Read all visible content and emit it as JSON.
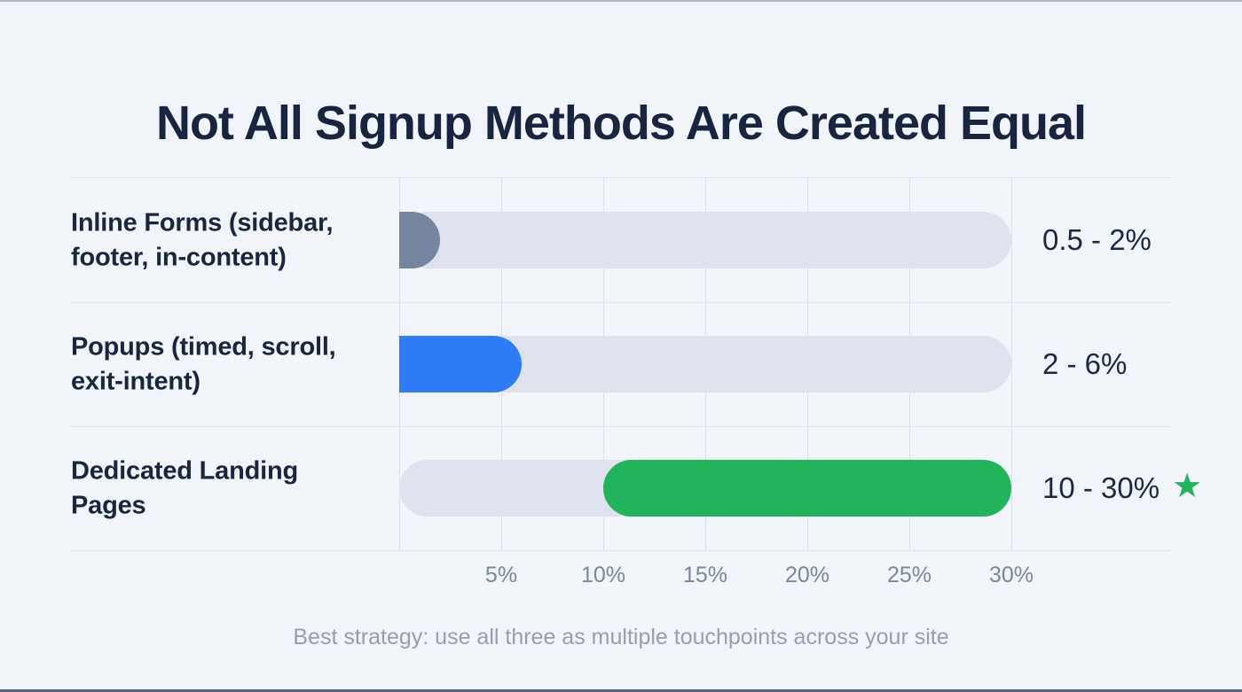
{
  "page": {
    "title": "Not All Signup Methods Are Created Equal",
    "footnote": "Best strategy: use all three as multiple touchpoints across your site"
  },
  "icons": {
    "star": "★"
  },
  "colors": {
    "background": "#F1F4F8",
    "track": "#DFE3EE",
    "grid_line": "#DBE0EB",
    "title_text": "#192440",
    "tick_text": "#7C8799",
    "footnote_text": "#97A0B0",
    "slate_bar": "#76849E",
    "blue_bar": "#2F7DF6",
    "green_bar": "#21B45B",
    "star": "#21B45B"
  },
  "chart_data": {
    "type": "bar",
    "orientation": "horizontal",
    "title": "Not All Signup Methods Are Created Equal",
    "xlabel": "",
    "ylabel": "",
    "xlim": [
      0,
      30
    ],
    "grid": true,
    "legend": null,
    "x_ticks": [
      {
        "label": "5%",
        "value": 5
      },
      {
        "label": "10%",
        "value": 10
      },
      {
        "label": "15%",
        "value": 15
      },
      {
        "label": "20%",
        "value": 20
      },
      {
        "label": "25%",
        "value": 25
      },
      {
        "label": "30%",
        "value": 30
      }
    ],
    "rows": [
      {
        "label": "Inline Forms (sidebar, footer, in-content)",
        "label_lines": [
          "Inline Forms (sidebar,",
          "footer, in-content)"
        ],
        "range_label": "0.5 - 2%",
        "range_min_pct": 0.5,
        "range_max_pct": 2,
        "bar_start_pct": 0,
        "bar_end_pct": 2,
        "color": "#76849E",
        "starred": false
      },
      {
        "label": "Popups (timed, scroll, exit-intent)",
        "label_lines": [
          "Popups (timed, scroll,",
          "exit-intent)"
        ],
        "range_label": "2 - 6%",
        "range_min_pct": 2,
        "range_max_pct": 6,
        "bar_start_pct": 0,
        "bar_end_pct": 6,
        "color": "#2F7DF6",
        "starred": false
      },
      {
        "label": "Dedicated Landing Pages",
        "label_lines": [
          "Dedicated Landing",
          "Pages"
        ],
        "range_label": "10 - 30%",
        "range_min_pct": 10,
        "range_max_pct": 30,
        "bar_start_pct": 10,
        "bar_end_pct": 30,
        "color": "#21B45B",
        "starred": true
      }
    ],
    "footnote": "Best strategy: use all three as multiple touchpoints across your site"
  }
}
